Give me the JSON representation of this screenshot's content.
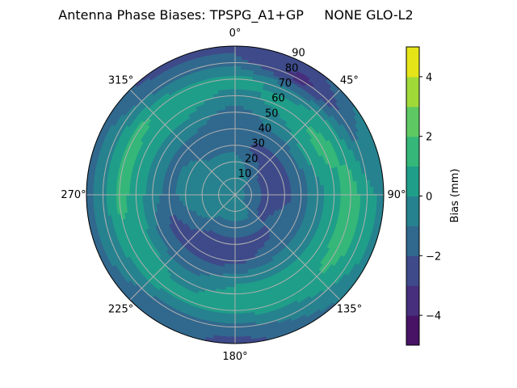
{
  "chart_data": {
    "type": "heatmap",
    "subtype": "polar-filled-contour",
    "title": "Antenna Phase Biases: TPSPG_A1+GP     NONE GLO-L2",
    "angular_ticks": [
      "0°",
      "45°",
      "90°",
      "135°",
      "180°",
      "225°",
      "270°",
      "315°"
    ],
    "angular_tick_values": [
      0,
      45,
      90,
      135,
      180,
      225,
      270,
      315
    ],
    "angular_direction": "clockwise",
    "angular_zero": "top",
    "radial_ticks": [
      "10",
      "20",
      "30",
      "40",
      "50",
      "60",
      "70",
      "80",
      "90"
    ],
    "radial_tick_values": [
      10,
      20,
      30,
      40,
      50,
      60,
      70,
      80,
      90
    ],
    "rlim": [
      0,
      90
    ],
    "grid": true,
    "azimuth": [
      0,
      30,
      60,
      90,
      120,
      150,
      180,
      210,
      240,
      270,
      300,
      330
    ],
    "zenith": [
      0,
      10,
      20,
      30,
      40,
      50,
      60,
      70,
      80,
      90
    ],
    "values_mm": [
      [
        -0.5,
        -0.5,
        -0.5,
        -1.5,
        -1.5,
        -1.5,
        -0.5,
        0.5,
        -1.5,
        -2.5
      ],
      [
        -0.5,
        -0.5,
        -1.5,
        -2.5,
        -1.5,
        -0.5,
        0.5,
        -0.5,
        -3.5,
        -2.5
      ],
      [
        -0.5,
        -1.5,
        -2.5,
        -2.5,
        -1.5,
        0.5,
        1.5,
        0.5,
        -1.5,
        -0.5
      ],
      [
        -0.5,
        -1.5,
        -2.5,
        -2.5,
        -1.5,
        -0.5,
        0.5,
        1.5,
        0.5,
        -0.5
      ],
      [
        -0.5,
        -1.5,
        -2.5,
        -1.5,
        -1.5,
        -0.5,
        0.5,
        1.5,
        0.5,
        -0.5
      ],
      [
        -0.5,
        -0.5,
        -1.5,
        -2.5,
        -1.5,
        -0.5,
        0.5,
        0.5,
        -0.5,
        -1.5
      ],
      [
        0.5,
        -0.5,
        -1.5,
        -2.5,
        -2.5,
        -0.5,
        0.5,
        0.5,
        -1.5,
        -2.5
      ],
      [
        -0.5,
        -0.5,
        -1.5,
        -2.5,
        -2.5,
        -1.5,
        -0.5,
        0.5,
        -1.5,
        -1.5
      ],
      [
        -0.5,
        -0.5,
        -0.5,
        -1.5,
        -2.5,
        -1.5,
        0.5,
        0.5,
        -0.5,
        -1.5
      ],
      [
        -0.5,
        -0.5,
        -0.5,
        -0.5,
        -1.5,
        -0.5,
        0.5,
        1.5,
        -0.5,
        -1.5
      ],
      [
        -0.5,
        -0.5,
        -0.5,
        -0.5,
        -1.5,
        -0.5,
        0.5,
        1.5,
        -0.5,
        -1.5
      ],
      [
        -0.5,
        -0.5,
        -0.5,
        -1.5,
        -1.5,
        -0.5,
        0.5,
        0.5,
        -1.5,
        -2.5
      ]
    ],
    "colorbar": {
      "label": "Bias (mm)",
      "range": [
        -5,
        5
      ],
      "levels": [
        -5,
        -4,
        -3,
        -2,
        -1,
        0,
        1,
        2,
        3,
        4,
        5
      ],
      "ticks": [
        "−4",
        "−2",
        "0",
        "2",
        "4"
      ],
      "tick_values": [
        -4,
        -2,
        0,
        2,
        4
      ],
      "colormap": "viridis",
      "colors": [
        "#471365",
        "#472f7d",
        "#3e4a89",
        "#31688e",
        "#26828e",
        "#1f9e89",
        "#35b779",
        "#5ec962",
        "#a0da39",
        "#e5e419"
      ]
    }
  }
}
